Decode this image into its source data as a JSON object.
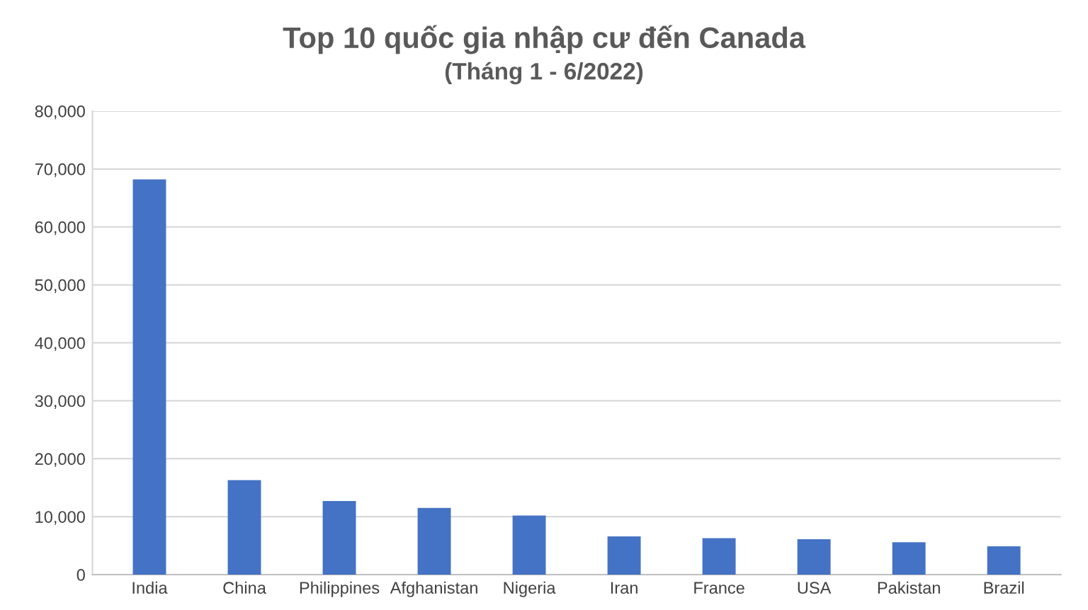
{
  "chart_data": {
    "type": "bar",
    "title": "Top 10 quốc gia nhập cư đến Canada",
    "subtitle": "(Tháng 1 - 6/2022)",
    "categories": [
      "India",
      "China",
      "Philippines",
      "Afghanistan",
      "Nigeria",
      "Iran",
      "France",
      "USA",
      "Pakistan",
      "Brazil"
    ],
    "values": [
      68200,
      16300,
      12700,
      11500,
      10200,
      6600,
      6300,
      6100,
      5600,
      4900
    ],
    "color": "#4472c4",
    "ylim": [
      0,
      80000
    ],
    "yticks": [
      {
        "value": 0,
        "label": "0"
      },
      {
        "value": 10000,
        "label": "10,000"
      },
      {
        "value": 20000,
        "label": "20,000"
      },
      {
        "value": 30000,
        "label": "30,000"
      },
      {
        "value": 40000,
        "label": "40,000"
      },
      {
        "value": 50000,
        "label": "50,000"
      },
      {
        "value": 60000,
        "label": "60,000"
      },
      {
        "value": 70000,
        "label": "70,000"
      },
      {
        "value": 80000,
        "label": "80,000"
      }
    ],
    "grid": "y"
  }
}
